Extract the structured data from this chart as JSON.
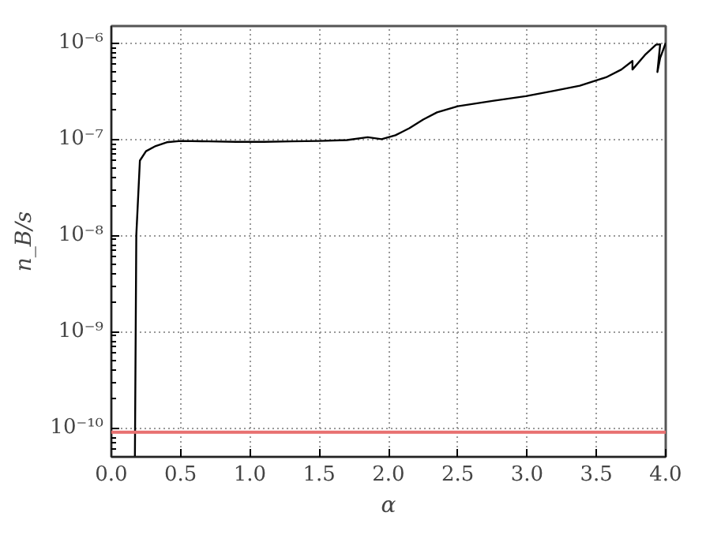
{
  "chart_data": {
    "type": "line",
    "xlabel": "α",
    "ylabel": "n_B/s",
    "log": "y",
    "xlim": [
      0.0,
      4.0
    ],
    "xticks": [
      {
        "value": 0,
        "label": "0.0"
      },
      0.5,
      {
        "value": 1,
        "label": "1.0"
      },
      1.5,
      {
        "value": 2,
        "label": "2.0"
      },
      2.5,
      {
        "value": 3,
        "label": "3.0"
      },
      3.5,
      {
        "value": 4,
        "label": "4.0"
      }
    ],
    "ylim": [
      5e-11,
      1.5e-06
    ],
    "yticks": [
      {
        "value": 1e-10,
        "label": "10⁻¹⁰"
      },
      {
        "value": 1e-09,
        "label": "10⁻⁹"
      },
      {
        "value": 1e-08,
        "label": "10⁻⁸"
      },
      {
        "value": 1e-07,
        "label": "10⁻⁷"
      },
      {
        "value": 1e-06,
        "label": "10⁻⁶"
      }
    ],
    "grid": true,
    "line_style": "solid",
    "marker": "none",
    "series": [
      {
        "color": "#000000",
        "x": [
          0.17,
          0.18,
          0.206,
          0.25,
          0.32,
          0.4,
          0.5,
          0.7,
          0.9,
          1.1,
          1.3,
          1.5,
          1.7,
          1.85,
          1.95,
          2.05,
          2.15,
          2.25,
          2.35,
          2.5,
          2.75,
          2.99,
          3.2,
          3.38,
          3.57,
          3.68,
          3.76,
          3.76,
          3.85,
          3.93,
          3.96,
          3.94,
          3.96,
          4.0
        ],
        "values": [
          5e-11,
          1e-08,
          6e-08,
          7.5e-08,
          8.5e-08,
          9.3e-08,
          9.6e-08,
          9.5e-08,
          9.4e-08,
          9.4e-08,
          9.5e-08,
          9.6e-08,
          9.8e-08,
          1.05e-07,
          1e-07,
          1.1e-07,
          1.3e-07,
          1.6e-07,
          1.9e-07,
          2.2e-07,
          2.5e-07,
          2.8e-07,
          3.2e-07,
          3.6e-07,
          4.4e-07,
          5.3e-07,
          6.5e-07,
          5.3e-07,
          7.5e-07,
          9.6e-07,
          9.7e-07,
          5e-07,
          7e-07,
          1e-06
        ]
      }
    ],
    "ref_lines": [
      {
        "axis": "y",
        "value": 9e-11,
        "color": "#e87070"
      }
    ]
  }
}
